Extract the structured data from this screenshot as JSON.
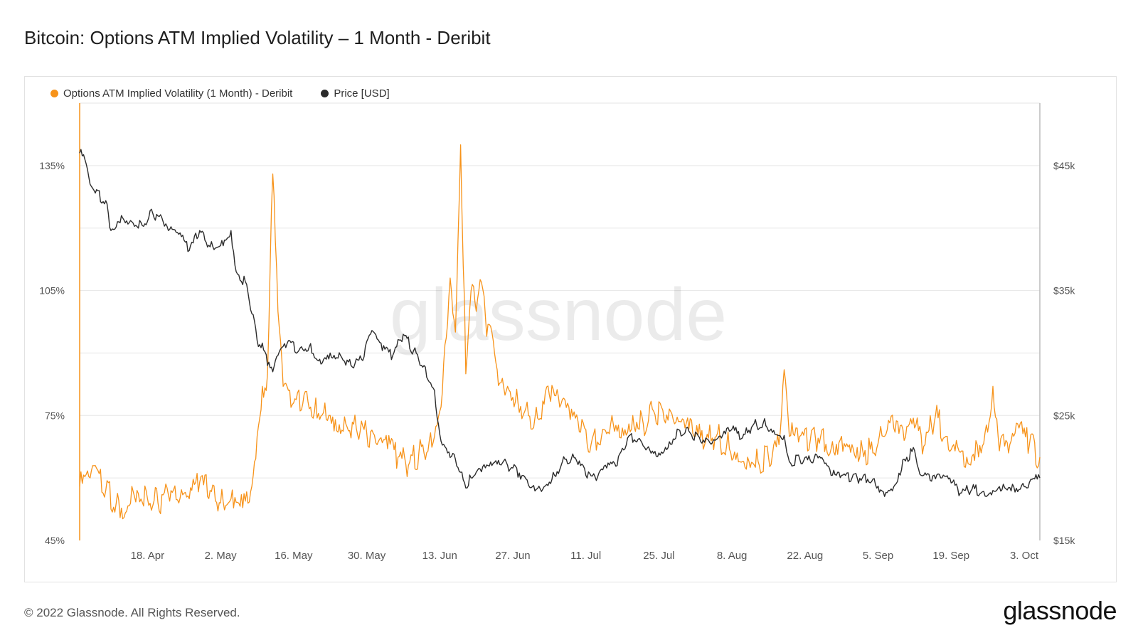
{
  "title": "Bitcoin: Options ATM Implied Volatility – 1 Month - Deribit",
  "watermark": "glassnode",
  "footer": {
    "copyright": "© 2022 Glassnode. All Rights Reserved.",
    "logo_text": "glassnode"
  },
  "colors": {
    "volatility": "#f7931a",
    "price": "#2b2b2b",
    "grid": "#e6e6e6",
    "axis_text": "#555555"
  },
  "chart_data": {
    "type": "line",
    "legend_position": "top-left",
    "grid": true,
    "x_ticks": [
      "18. Apr",
      "2. May",
      "16. May",
      "30. May",
      "13. Jun",
      "27. Jun",
      "11. Jul",
      "25. Jul",
      "8. Aug",
      "22. Aug",
      "5. Sep",
      "19. Sep",
      "3. Oct"
    ],
    "x_range": [
      "2022-04-05",
      "2022-10-06"
    ],
    "y_left": {
      "ticks": [
        "45%",
        "75%",
        "105%",
        "135%"
      ],
      "range": [
        45,
        150
      ]
    },
    "y_right": {
      "ticks": [
        "$15k",
        "$25k",
        "$35k",
        "$45k"
      ],
      "range": [
        15000,
        50000
      ]
    },
    "series": [
      {
        "name": "Options ATM Implied Volatility (1 Month) - Deribit",
        "axis": "left",
        "points": [
          [
            "2022-04-05",
            58
          ],
          [
            "2022-04-07",
            60
          ],
          [
            "2022-04-08",
            63
          ],
          [
            "2022-04-10",
            57
          ],
          [
            "2022-04-12",
            54
          ],
          [
            "2022-04-14",
            52
          ],
          [
            "2022-04-15",
            58
          ],
          [
            "2022-04-16",
            57
          ],
          [
            "2022-04-18",
            55
          ],
          [
            "2022-04-20",
            54
          ],
          [
            "2022-04-22",
            56
          ],
          [
            "2022-04-24",
            54
          ],
          [
            "2022-04-26",
            55
          ],
          [
            "2022-04-28",
            59
          ],
          [
            "2022-04-30",
            57
          ],
          [
            "2022-05-02",
            54
          ],
          [
            "2022-05-04",
            55
          ],
          [
            "2022-05-06",
            56
          ],
          [
            "2022-05-08",
            58
          ],
          [
            "2022-05-09",
            70
          ],
          [
            "2022-05-10",
            82
          ],
          [
            "2022-05-11",
            85
          ],
          [
            "2022-05-12",
            133
          ],
          [
            "2022-05-13",
            100
          ],
          [
            "2022-05-14",
            82
          ],
          [
            "2022-05-16",
            78
          ],
          [
            "2022-05-18",
            80
          ],
          [
            "2022-05-20",
            76
          ],
          [
            "2022-05-22",
            78
          ],
          [
            "2022-05-24",
            74
          ],
          [
            "2022-05-26",
            73
          ],
          [
            "2022-05-28",
            72
          ],
          [
            "2022-05-30",
            71
          ],
          [
            "2022-06-01",
            68
          ],
          [
            "2022-06-03",
            67
          ],
          [
            "2022-06-05",
            65
          ],
          [
            "2022-06-07",
            63
          ],
          [
            "2022-06-09",
            66
          ],
          [
            "2022-06-11",
            69
          ],
          [
            "2022-06-13",
            76
          ],
          [
            "2022-06-14",
            92
          ],
          [
            "2022-06-15",
            108
          ],
          [
            "2022-06-16",
            95
          ],
          [
            "2022-06-17",
            140
          ],
          [
            "2022-06-18",
            85
          ],
          [
            "2022-06-19",
            105
          ],
          [
            "2022-06-20",
            100
          ],
          [
            "2022-06-21",
            107
          ],
          [
            "2022-06-22",
            94
          ],
          [
            "2022-06-23",
            95
          ],
          [
            "2022-06-24",
            86
          ],
          [
            "2022-06-26",
            82
          ],
          [
            "2022-06-28",
            78
          ],
          [
            "2022-06-30",
            75
          ],
          [
            "2022-07-02",
            74
          ],
          [
            "2022-07-04",
            80
          ],
          [
            "2022-07-06",
            77
          ],
          [
            "2022-07-08",
            74
          ],
          [
            "2022-07-10",
            71
          ],
          [
            "2022-07-12",
            68
          ],
          [
            "2022-07-14",
            70
          ],
          [
            "2022-07-16",
            75
          ],
          [
            "2022-07-18",
            72
          ],
          [
            "2022-07-20",
            75
          ],
          [
            "2022-07-22",
            73
          ],
          [
            "2022-07-24",
            76
          ],
          [
            "2022-07-26",
            74
          ],
          [
            "2022-07-28",
            73
          ],
          [
            "2022-07-30",
            72
          ],
          [
            "2022-08-01",
            70
          ],
          [
            "2022-08-03",
            69
          ],
          [
            "2022-08-05",
            70
          ],
          [
            "2022-08-07",
            68
          ],
          [
            "2022-08-09",
            66
          ],
          [
            "2022-08-11",
            65
          ],
          [
            "2022-08-13",
            64
          ],
          [
            "2022-08-15",
            65
          ],
          [
            "2022-08-17",
            68
          ],
          [
            "2022-08-18",
            86
          ],
          [
            "2022-08-19",
            70
          ],
          [
            "2022-08-21",
            70
          ],
          [
            "2022-08-23",
            69
          ],
          [
            "2022-08-25",
            70
          ],
          [
            "2022-08-27",
            67
          ],
          [
            "2022-08-29",
            70
          ],
          [
            "2022-08-31",
            68
          ],
          [
            "2022-09-02",
            67
          ],
          [
            "2022-09-04",
            66
          ],
          [
            "2022-09-06",
            70
          ],
          [
            "2022-09-08",
            72
          ],
          [
            "2022-09-10",
            69
          ],
          [
            "2022-09-12",
            72
          ],
          [
            "2022-09-14",
            68
          ],
          [
            "2022-09-16",
            75
          ],
          [
            "2022-09-18",
            70
          ],
          [
            "2022-09-20",
            69
          ],
          [
            "2022-09-22",
            65
          ],
          [
            "2022-09-24",
            68
          ],
          [
            "2022-09-26",
            71
          ],
          [
            "2022-09-27",
            82
          ],
          [
            "2022-09-28",
            70
          ],
          [
            "2022-09-30",
            66
          ],
          [
            "2022-10-02",
            72
          ],
          [
            "2022-10-04",
            68
          ],
          [
            "2022-10-06",
            65
          ]
        ]
      },
      {
        "name": "Price [USD]",
        "axis": "right",
        "points": [
          [
            "2022-04-05",
            46000
          ],
          [
            "2022-04-06",
            45500
          ],
          [
            "2022-04-07",
            43500
          ],
          [
            "2022-04-08",
            42800
          ],
          [
            "2022-04-10",
            42200
          ],
          [
            "2022-04-11",
            39800
          ],
          [
            "2022-04-13",
            41000
          ],
          [
            "2022-04-15",
            40500
          ],
          [
            "2022-04-17",
            40200
          ],
          [
            "2022-04-19",
            41200
          ],
          [
            "2022-04-21",
            40500
          ],
          [
            "2022-04-22",
            39800
          ],
          [
            "2022-04-24",
            39500
          ],
          [
            "2022-04-26",
            38200
          ],
          [
            "2022-04-28",
            39800
          ],
          [
            "2022-04-30",
            38500
          ],
          [
            "2022-05-02",
            38600
          ],
          [
            "2022-05-04",
            39800
          ],
          [
            "2022-05-05",
            36500
          ],
          [
            "2022-05-07",
            35500
          ],
          [
            "2022-05-09",
            31000
          ],
          [
            "2022-05-10",
            30800
          ],
          [
            "2022-05-11",
            29000
          ],
          [
            "2022-05-12",
            28500
          ],
          [
            "2022-05-13",
            29800
          ],
          [
            "2022-05-15",
            31000
          ],
          [
            "2022-05-17",
            30200
          ],
          [
            "2022-05-19",
            30500
          ],
          [
            "2022-05-21",
            29500
          ],
          [
            "2022-05-23",
            30000
          ],
          [
            "2022-05-25",
            29800
          ],
          [
            "2022-05-27",
            29000
          ],
          [
            "2022-05-29",
            29500
          ],
          [
            "2022-05-31",
            31800
          ],
          [
            "2022-06-02",
            30200
          ],
          [
            "2022-06-04",
            29800
          ],
          [
            "2022-06-06",
            31500
          ],
          [
            "2022-06-08",
            30200
          ],
          [
            "2022-06-10",
            29000
          ],
          [
            "2022-06-12",
            27000
          ],
          [
            "2022-06-13",
            23500
          ],
          [
            "2022-06-14",
            22500
          ],
          [
            "2022-06-16",
            21500
          ],
          [
            "2022-06-18",
            19200
          ],
          [
            "2022-06-19",
            20000
          ],
          [
            "2022-06-21",
            20500
          ],
          [
            "2022-06-23",
            21000
          ],
          [
            "2022-06-25",
            21200
          ],
          [
            "2022-06-27",
            20800
          ],
          [
            "2022-06-29",
            20200
          ],
          [
            "2022-07-01",
            19400
          ],
          [
            "2022-07-03",
            19300
          ],
          [
            "2022-07-05",
            20200
          ],
          [
            "2022-07-07",
            21500
          ],
          [
            "2022-07-09",
            21600
          ],
          [
            "2022-07-11",
            20200
          ],
          [
            "2022-07-13",
            19800
          ],
          [
            "2022-07-15",
            20800
          ],
          [
            "2022-07-17",
            21000
          ],
          [
            "2022-07-19",
            23200
          ],
          [
            "2022-07-21",
            23100
          ],
          [
            "2022-07-23",
            22500
          ],
          [
            "2022-07-25",
            22000
          ],
          [
            "2022-07-27",
            22900
          ],
          [
            "2022-07-29",
            23800
          ],
          [
            "2022-07-31",
            23600
          ],
          [
            "2022-08-02",
            22900
          ],
          [
            "2022-08-04",
            22700
          ],
          [
            "2022-08-06",
            23200
          ],
          [
            "2022-08-08",
            23900
          ],
          [
            "2022-08-10",
            23200
          ],
          [
            "2022-08-12",
            24200
          ],
          [
            "2022-08-14",
            24400
          ],
          [
            "2022-08-16",
            23800
          ],
          [
            "2022-08-18",
            23400
          ],
          [
            "2022-08-19",
            21300
          ],
          [
            "2022-08-21",
            21500
          ],
          [
            "2022-08-23",
            21400
          ],
          [
            "2022-08-25",
            21600
          ],
          [
            "2022-08-27",
            20200
          ],
          [
            "2022-08-29",
            20200
          ],
          [
            "2022-08-31",
            20000
          ],
          [
            "2022-09-02",
            20000
          ],
          [
            "2022-09-04",
            19900
          ],
          [
            "2022-09-06",
            18900
          ],
          [
            "2022-09-08",
            19300
          ],
          [
            "2022-09-10",
            21500
          ],
          [
            "2022-09-12",
            22200
          ],
          [
            "2022-09-13",
            20300
          ],
          [
            "2022-09-15",
            19800
          ],
          [
            "2022-09-17",
            20000
          ],
          [
            "2022-09-19",
            19600
          ],
          [
            "2022-09-21",
            18800
          ],
          [
            "2022-09-23",
            19100
          ],
          [
            "2022-09-25",
            18900
          ],
          [
            "2022-09-27",
            19000
          ],
          [
            "2022-09-29",
            19500
          ],
          [
            "2022-10-01",
            19300
          ],
          [
            "2022-10-03",
            19300
          ],
          [
            "2022-10-06",
            20000
          ]
        ]
      }
    ]
  }
}
